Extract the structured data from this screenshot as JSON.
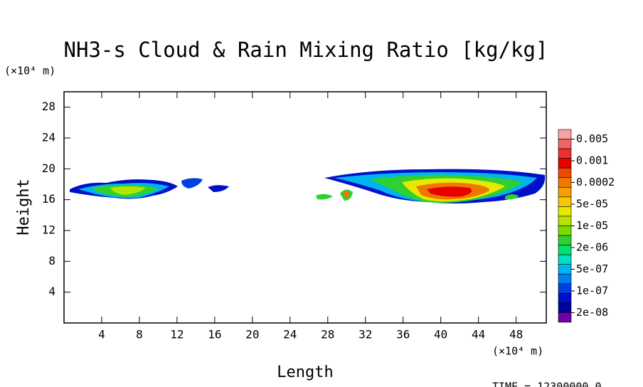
{
  "chart_data": {
    "type": "contour",
    "title": "NH3-s Cloud & Rain Mixing Ratio [kg/kg]",
    "x_label": "Length",
    "y_label": "Height",
    "x_unit": "(×10⁴ m)",
    "y_unit": "(×10⁴ m)",
    "footer": "TIME = 12300000.0",
    "xlim": [
      0,
      51.2
    ],
    "ylim": [
      0,
      30
    ],
    "xticks": [
      4,
      8,
      12,
      16,
      20,
      24,
      28,
      32,
      36,
      40,
      44,
      48
    ],
    "yticks": [
      4,
      8,
      12,
      16,
      20,
      24,
      28
    ],
    "colorbar": {
      "colors": [
        "#f7a3a3",
        "#f06464",
        "#ee3030",
        "#e80000",
        "#f04800",
        "#f07800",
        "#f5a000",
        "#f5c800",
        "#e8e800",
        "#b4e400",
        "#78dc00",
        "#30d030",
        "#00e070",
        "#00e0c0",
        "#00b4f0",
        "#0080f0",
        "#0040e0",
        "#0010c8",
        "#0000a0",
        "#7000a8"
      ],
      "labels": [
        0.005,
        0.001,
        0.0002,
        {
          "value": 5e-05,
          "label": "5e-05"
        },
        {
          "value": 1e-05,
          "label": "1e-05"
        },
        {
          "value": 2e-06,
          "label": "2e-06"
        },
        {
          "value": 5e-07,
          "label": "5e-07"
        },
        {
          "value": 1e-07,
          "label": "1e-07"
        },
        {
          "value": 2e-08,
          "label": "2e-08"
        }
      ]
    }
  }
}
